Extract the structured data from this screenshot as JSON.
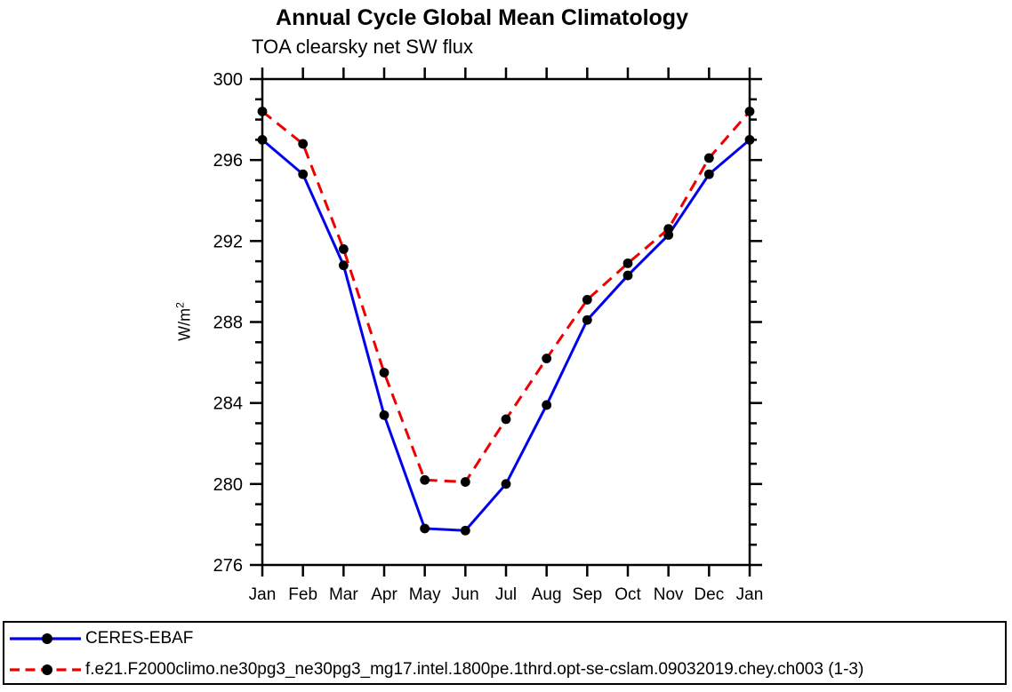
{
  "title": "Annual Cycle Global Mean Climatology",
  "subtitle": "TOA clearsky net SW flux",
  "ylabel_base": "W/m",
  "ylabel_sup": "2",
  "chart_data": {
    "type": "line",
    "x_categories": [
      "Jan",
      "Feb",
      "Mar",
      "Apr",
      "May",
      "Jun",
      "Jul",
      "Aug",
      "Sep",
      "Oct",
      "Nov",
      "Dec",
      "Jan"
    ],
    "ylim": [
      276,
      300
    ],
    "ytick_labels": [
      276,
      280,
      284,
      288,
      292,
      296,
      300
    ],
    "ytick_major_step": 4,
    "ytick_minor_step": 1,
    "grid": false,
    "legend_position": "bottom",
    "frame_color": "#000000",
    "marker_color": "#000000",
    "series": [
      {
        "name": "CERES-EBAF",
        "color": "#0000EE",
        "style": "solid",
        "marker": "circle",
        "values": [
          297.0,
          295.3,
          290.8,
          283.4,
          277.8,
          277.7,
          280.0,
          283.9,
          288.1,
          290.3,
          292.3,
          295.3,
          297.0
        ]
      },
      {
        "name": "f.e21.F2000climo.ne30pg3_ne30pg3_mg17.intel.1800pe.1thrd.opt-se-cslam.09032019.chey.ch003 (1-3)",
        "color": "#EE0000",
        "style": "dashed",
        "marker": "circle",
        "values": [
          298.4,
          296.8,
          291.6,
          285.5,
          280.2,
          280.1,
          283.2,
          286.2,
          289.1,
          290.9,
          292.6,
          296.1,
          298.4
        ]
      }
    ]
  }
}
